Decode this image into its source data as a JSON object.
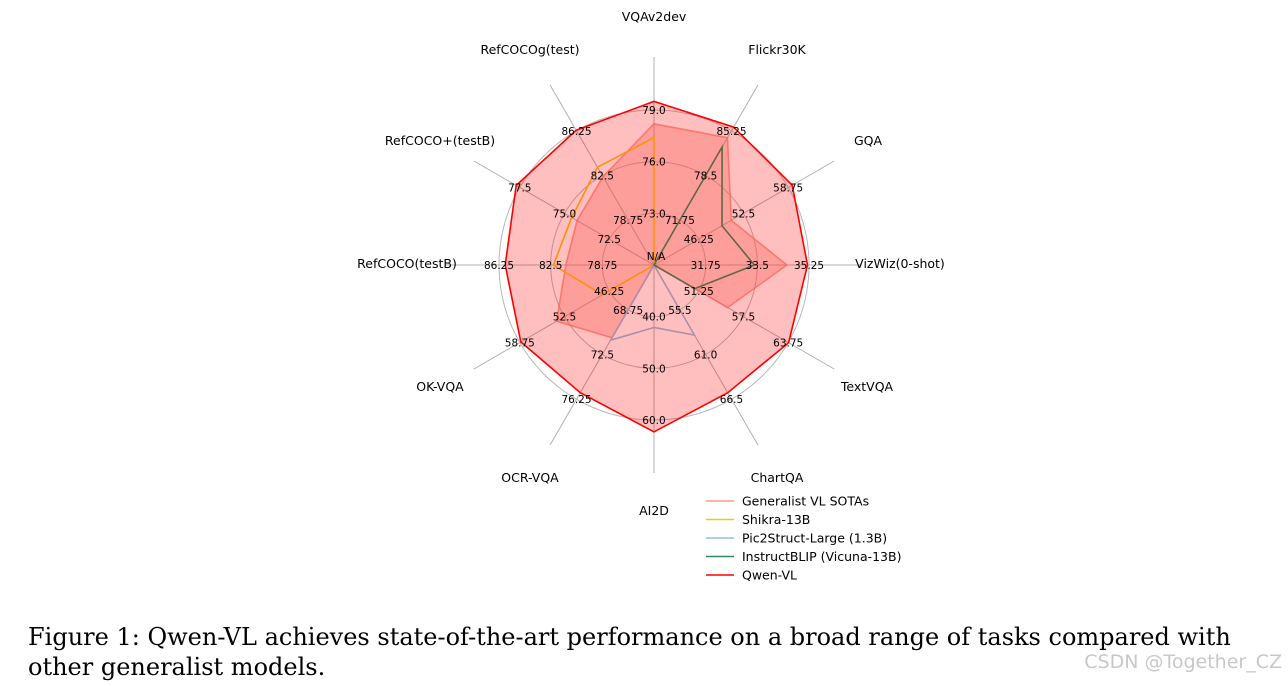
{
  "chart_data": {
    "type": "radar",
    "axes": [
      {
        "label": "VQAv2dev",
        "ticks": [
          "73.0",
          "76.0",
          "79.0"
        ]
      },
      {
        "label": "Flickr30K",
        "ticks": [
          "71.75",
          "78.5",
          "85.25"
        ]
      },
      {
        "label": "GQA",
        "ticks": [
          "46.25",
          "52.5",
          "58.75"
        ]
      },
      {
        "label": "VizWiz(0-shot)",
        "ticks": [
          "31.75",
          "33.5",
          "35.25"
        ]
      },
      {
        "label": "TextVQA",
        "ticks": [
          "51.25",
          "57.5",
          "63.75"
        ]
      },
      {
        "label": "ChartQA",
        "ticks": [
          "55.5",
          "61.0",
          "66.5"
        ]
      },
      {
        "label": "AI2D",
        "ticks": [
          "40.0",
          "50.0",
          "60.0"
        ]
      },
      {
        "label": "OCR-VQA",
        "ticks": [
          "68.75",
          "72.5",
          "76.25"
        ]
      },
      {
        "label": "OK-VQA",
        "ticks": [
          "46.25",
          "52.5",
          "58.75"
        ]
      },
      {
        "label": "RefCOCO(testB)",
        "ticks": [
          "78.75",
          "82.5",
          "86.25"
        ]
      },
      {
        "label": "RefCOCO+(testB)",
        "ticks": [
          "72.5",
          "75.0",
          "77.5"
        ]
      },
      {
        "label": "RefCOCOg(test)",
        "ticks": [
          "78.75",
          "82.5",
          "86.25"
        ]
      }
    ],
    "center_label": "N/A",
    "scale_note": "each axis: center = N/A, rings at three tick values, outer ring = last tick",
    "series": [
      {
        "name": "Generalist VL SOTAs",
        "color": "#fa8072",
        "fill": true,
        "values": [
          78.2,
          84.2,
          50.8,
          34.5,
          55.3,
          0.0,
          0.0,
          71.1,
          53.6,
          81.4,
          74.3,
          82.4
        ]
      },
      {
        "name": "Shikra-13B",
        "color": "#ffc20e",
        "fill": false,
        "values": [
          77.4,
          0.0,
          0.0,
          0.0,
          0.0,
          0.0,
          0.0,
          0.0,
          47.2,
          82.3,
          74.6,
          83.2
        ]
      },
      {
        "name": "Pic2Struct-Large (1.3B)",
        "color": "#8fc1e3",
        "fill": false,
        "values": [
          0.0,
          0.0,
          0.0,
          0.0,
          0.0,
          58.6,
          42.1,
          71.3,
          0.0,
          0.0,
          0.0,
          0.0
        ]
      },
      {
        "name": "InstructBLIP (Vicuna-13B)",
        "color": "#2e8b57",
        "fill": false,
        "values": [
          0.0,
          82.8,
          49.5,
          33.4,
          50.7,
          0.0,
          0.0,
          0.0,
          0.0,
          0.0,
          0.0,
          0.0
        ]
      },
      {
        "name": "Qwen-VL",
        "color": "#ff0000",
        "fill": true,
        "values": [
          79.5,
          85.8,
          59.3,
          35.2,
          63.8,
          65.7,
          62.3,
          75.7,
          58.6,
          85.8,
          77.7,
          86.3
        ]
      }
    ]
  },
  "caption": "Figure 1: Qwen-VL achieves state-of-the-art performance on a broad range of tasks compared with other generalist models.",
  "watermark": "CSDN @Together_CZ"
}
